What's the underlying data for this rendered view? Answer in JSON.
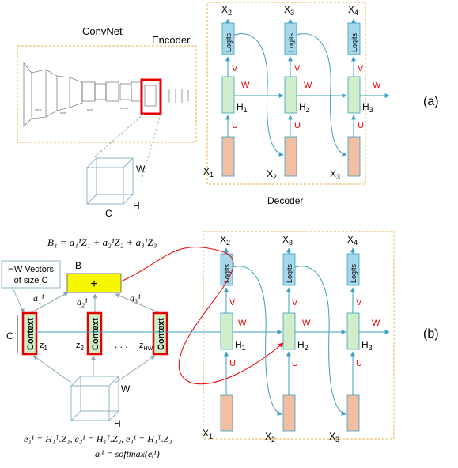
{
  "colors": {
    "logits_fill": "#a6d8ec",
    "hidden_fill": "#cfeec9",
    "input_fill": "#f3bfa3",
    "weight_red": "#e60000",
    "arrow_blue": "#3b9fc0",
    "dashed_orange": "#e8b24a",
    "context_fill": "#cfeec9",
    "context_border": "#e60000",
    "sum_fill": "#f7f700",
    "red_curve": "#e60000"
  },
  "panel_a": {
    "convnet_label": "ConvNet",
    "encoder_label": "Encoder",
    "volume_w": "W",
    "volume_c": "C",
    "volume_h": "H",
    "decoder_label": "Decoder",
    "panel_tag": "(a)",
    "columns": [
      {
        "top": "X",
        "top_sub": "2",
        "logits": "Logits",
        "v": "V",
        "hidden": "H",
        "hidden_sub": "1",
        "w": "W",
        "u": "U",
        "bottom": "X",
        "bottom_sub": "1"
      },
      {
        "top": "X",
        "top_sub": "3",
        "logits": "Logits",
        "v": "V",
        "hidden": "H",
        "hidden_sub": "2",
        "w": "W",
        "u": "U",
        "bottom": "X",
        "bottom_sub": "2"
      },
      {
        "top": "X",
        "top_sub": "4",
        "logits": "Logits",
        "v": "V",
        "hidden": "H",
        "hidden_sub": "3",
        "w": "W",
        "u": "U",
        "bottom": "X",
        "bottom_sub": "3"
      }
    ]
  },
  "panel_b": {
    "b1_equation": "B₁ = a₁¹Z₁ + a₂¹Z₂ + a₃¹Z₃",
    "hw_vectors": [
      "HW Vectors",
      "of size C"
    ],
    "b_label": "B",
    "plus": "+",
    "a1": "a₁¹",
    "a2": "a₂¹",
    "a3": "a₃¹",
    "c_label": "C",
    "context": "Context",
    "z1": "z",
    "z1_sub": "1",
    "z2": "z",
    "z2_sub": "2",
    "dots": ". . .",
    "zhw": "z",
    "zhw_sub": "HW",
    "volume_w": "W",
    "volume_h": "H",
    "e_equations": "e₁¹ = H₁ᵀ.Z₁,  e₂¹ = H₁ᵀ.Z₂,  e₃¹ = H₁ᵀ.Z₃",
    "a_equation": "aᵢ¹ = softmax(eᵢ¹)",
    "panel_tag": "(b)",
    "columns": [
      {
        "top": "X",
        "top_sub": "2",
        "logits": "Logits",
        "v": "V",
        "hidden": "H",
        "hidden_sub": "1",
        "w": "W",
        "u": "U",
        "bottom": "X",
        "bottom_sub": "1"
      },
      {
        "top": "X",
        "top_sub": "3",
        "logits": "Logits",
        "v": "V",
        "hidden": "H",
        "hidden_sub": "2",
        "w": "W",
        "u": "U",
        "bottom": "X",
        "bottom_sub": "2"
      },
      {
        "top": "X",
        "top_sub": "4",
        "logits": "Logits",
        "v": "V",
        "hidden": "H",
        "hidden_sub": "3",
        "w": "W",
        "u": "U",
        "bottom": "X",
        "bottom_sub": "3"
      }
    ]
  }
}
